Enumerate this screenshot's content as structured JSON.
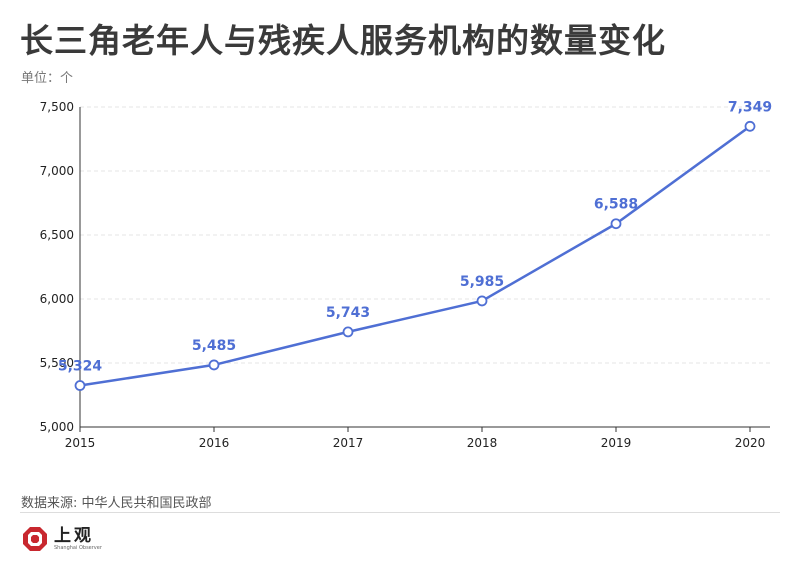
{
  "header": {
    "title": "长三角老年人与残疾人服务机构的数量变化",
    "unit": "单位：个"
  },
  "chart_data": {
    "type": "line",
    "x": [
      "2015",
      "2016",
      "2017",
      "2018",
      "2019",
      "2020"
    ],
    "series": [
      {
        "values": [
          5324,
          5485,
          5743,
          5985,
          6588,
          7349
        ]
      }
    ],
    "data_labels": [
      "5,324",
      "5,485",
      "5,743",
      "5,985",
      "6,588",
      "7,349"
    ],
    "y_ticks": [
      "5,000",
      "5,500",
      "6,000",
      "6,500",
      "7,000",
      "7,500"
    ],
    "ylim": [
      5000,
      7500
    ],
    "grid": "horizontal dashed",
    "title": "",
    "xlabel": "",
    "ylabel": ""
  },
  "colors": {
    "line": "#4f6fd4",
    "label": "#4f6fd4",
    "grid": "#e6e6e6",
    "logo_red": "#c8282f"
  },
  "footer": {
    "source": "数据来源: 中华人民共和国民政部",
    "logo_cn": "上观",
    "logo_en": "Shanghai Observer"
  }
}
